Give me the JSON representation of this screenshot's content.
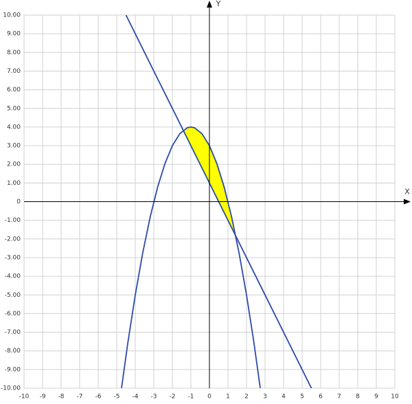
{
  "chart_data": {
    "type": "function_plot",
    "x_label": "X",
    "y_label": "Y",
    "xlim": [
      -10,
      10
    ],
    "ylim": [
      -10,
      10
    ],
    "xticks": [
      -10,
      -9,
      -8,
      -7,
      -6,
      -5,
      -4,
      -3,
      -2,
      -1,
      0,
      1,
      2,
      3,
      4,
      5,
      6,
      7,
      8,
      9,
      10
    ],
    "yticks": [
      {
        "value": 10,
        "label": "10.00"
      },
      {
        "value": 9,
        "label": "9.00"
      },
      {
        "value": 8,
        "label": "8.00"
      },
      {
        "value": 7,
        "label": "7.00"
      },
      {
        "value": 6,
        "label": "6.00"
      },
      {
        "value": 5,
        "label": "5.00"
      },
      {
        "value": 4,
        "label": "4.00"
      },
      {
        "value": 3,
        "label": "3.00"
      },
      {
        "value": 2,
        "label": "2.00"
      },
      {
        "value": 1,
        "label": "1.00"
      },
      0,
      {
        "value": -1,
        "label": "-1.00"
      },
      {
        "value": -2,
        "label": "-2.00"
      },
      {
        "value": -3,
        "label": "-3.00"
      },
      {
        "value": -4,
        "label": "-4.00"
      },
      {
        "value": -5,
        "label": "-5.00"
      },
      {
        "value": -6,
        "label": "-6.00"
      },
      {
        "value": -7,
        "label": "-7.00"
      },
      {
        "value": -8,
        "label": "-8.00"
      },
      {
        "value": -9,
        "label": "-9.00"
      },
      {
        "value": -10,
        "label": "-10.00"
      }
    ],
    "grid": true,
    "series": [
      {
        "color": "#2b4aa8",
        "x": [
          -4.74,
          -4.4,
          -4,
          -3.6,
          -3.2,
          -2.8,
          -2.4,
          -2,
          -1.6,
          -1.2,
          -1,
          -0.8,
          -0.4,
          0,
          0.4,
          0.8,
          1.2,
          1.6,
          2,
          2.4,
          2.74
        ],
        "values": [
          -9.99,
          -7.56,
          -5,
          -2.76,
          -0.84,
          0.76,
          2.04,
          3,
          3.64,
          3.96,
          4,
          3.96,
          3.64,
          3,
          2.04,
          0.76,
          -0.84,
          -2.76,
          -5,
          -7.56,
          -9.99
        ]
      },
      {
        "color": "#2b4aa8",
        "x": [
          -4.5,
          5.5
        ],
        "values": [
          10,
          -10
        ]
      }
    ],
    "fill": {
      "color": "#ffff00",
      "x": [
        -1.41,
        -1.2,
        -0.8,
        -0.4,
        0,
        0.4,
        0.8,
        1.2,
        1.41
      ],
      "upper": [
        3.83,
        3.96,
        3.96,
        3.64,
        3,
        2.04,
        0.76,
        -0.84,
        -1.81
      ],
      "lower": [
        3.82,
        3.4,
        2.6,
        1.8,
        1,
        0.2,
        -0.6,
        -1.4,
        -1.82
      ]
    }
  }
}
